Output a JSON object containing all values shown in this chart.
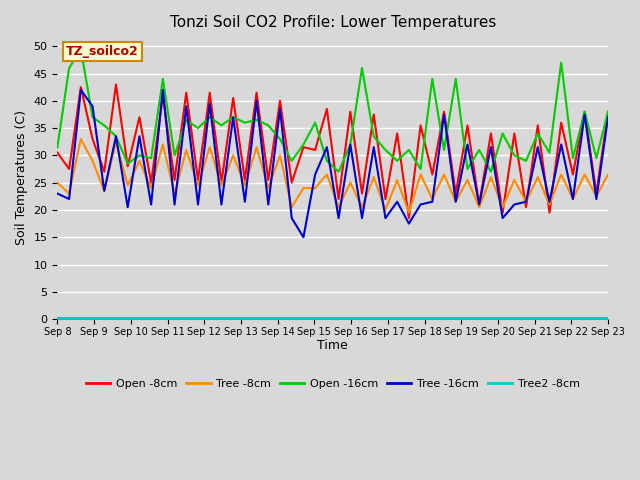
{
  "title": "Tonzi Soil CO2 Profile: Lower Temperatures",
  "xlabel": "Time",
  "ylabel": "Soil Temperatures (C)",
  "watermark": "TZ_soilco2",
  "ylim": [
    0,
    52
  ],
  "yticks": [
    0,
    5,
    10,
    15,
    20,
    25,
    30,
    35,
    40,
    45,
    50
  ],
  "x_labels": [
    "Sep 8",
    "Sep 9",
    "Sep 10",
    "Sep 11",
    "Sep 12",
    "Sep 13",
    "Sep 14",
    "Sep 15",
    "Sep 16",
    "Sep 17",
    "Sep 18",
    "Sep 19",
    "Sep 20",
    "Sep 21",
    "Sep 22",
    "Sep 23"
  ],
  "n_days": 16,
  "pts_per_day": 3,
  "series": {
    "Open -8cm": {
      "color": "#ff0000",
      "lw": 1.5,
      "data": [
        30.5,
        27.5,
        42.5,
        33.0,
        27.0,
        43.0,
        28.0,
        37.0,
        25.0,
        41.0,
        25.5,
        41.5,
        25.5,
        41.5,
        25.0,
        40.5,
        25.5,
        41.5,
        25.5,
        40.0,
        25.0,
        31.5,
        31.0,
        38.5,
        22.0,
        38.0,
        23.0,
        37.5,
        22.0,
        34.0,
        18.5,
        35.5,
        26.5,
        38.0,
        23.0,
        35.5,
        21.0,
        34.0,
        19.5,
        34.0,
        20.5,
        35.5,
        19.5,
        36.0,
        26.5,
        38.0,
        23.0,
        38.0
      ]
    },
    "Tree -8cm": {
      "color": "#ff8c00",
      "lw": 1.5,
      "data": [
        25.0,
        23.0,
        33.0,
        29.0,
        23.5,
        32.5,
        24.5,
        29.0,
        24.0,
        32.0,
        23.0,
        31.0,
        24.5,
        31.5,
        24.5,
        30.0,
        24.5,
        31.5,
        24.0,
        30.0,
        20.5,
        24.0,
        24.0,
        26.5,
        20.5,
        25.0,
        20.5,
        26.0,
        20.0,
        25.5,
        19.5,
        26.5,
        22.0,
        26.5,
        21.5,
        25.5,
        20.5,
        26.0,
        20.5,
        25.5,
        21.5,
        26.0,
        21.0,
        26.5,
        22.0,
        26.5,
        22.5,
        26.5
      ]
    },
    "Open -16cm": {
      "color": "#00cc00",
      "lw": 1.5,
      "data": [
        31.5,
        46.0,
        49.5,
        37.0,
        35.5,
        33.5,
        28.5,
        30.0,
        29.5,
        44.0,
        30.0,
        36.5,
        35.0,
        37.0,
        35.5,
        37.0,
        36.0,
        36.5,
        35.5,
        33.0,
        29.0,
        32.0,
        36.0,
        29.0,
        27.0,
        32.0,
        46.0,
        33.5,
        31.0,
        29.0,
        31.0,
        27.5,
        44.0,
        31.0,
        44.0,
        27.5,
        31.0,
        27.0,
        34.0,
        30.0,
        29.0,
        34.0,
        30.5,
        47.0,
        29.5,
        38.0,
        29.5,
        38.0
      ]
    },
    "Tree -16cm": {
      "color": "#0000cc",
      "lw": 1.5,
      "data": [
        23.0,
        22.0,
        42.0,
        39.0,
        23.5,
        33.5,
        20.5,
        33.5,
        21.0,
        42.0,
        21.0,
        39.0,
        21.0,
        39.5,
        21.0,
        37.0,
        21.5,
        40.0,
        21.0,
        38.5,
        18.5,
        15.0,
        26.5,
        31.5,
        18.5,
        32.0,
        18.5,
        31.5,
        18.5,
        21.5,
        17.5,
        21.0,
        21.5,
        37.5,
        21.5,
        32.0,
        21.0,
        31.5,
        18.5,
        21.0,
        21.5,
        31.5,
        21.5,
        32.0,
        22.0,
        37.5,
        22.0,
        37.0
      ]
    },
    "Tree2 -8cm": {
      "color": "#00cccc",
      "lw": 1.5,
      "data": [
        0.2,
        0.2,
        0.2,
        0.2,
        0.2,
        0.2,
        0.2,
        0.2,
        0.2,
        0.2,
        0.2,
        0.2,
        0.2,
        0.2,
        0.2,
        0.2,
        0.2,
        0.2,
        0.2,
        0.2,
        0.2,
        0.2,
        0.2,
        0.2,
        0.2,
        0.2,
        0.2,
        0.2,
        0.2,
        0.2,
        0.2,
        0.2,
        0.2,
        0.2,
        0.2,
        0.2,
        0.2,
        0.2,
        0.2,
        0.2,
        0.2,
        0.2,
        0.2,
        0.2,
        0.2,
        0.2,
        0.2,
        0.2
      ]
    }
  }
}
